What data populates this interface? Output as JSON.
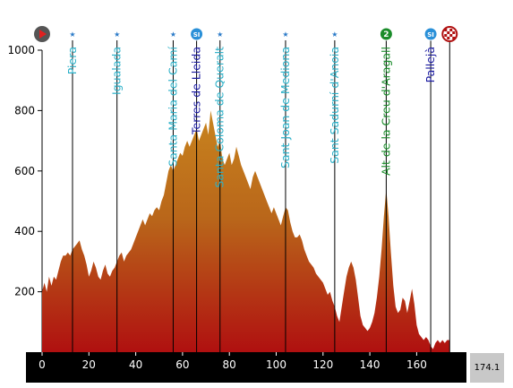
{
  "chart_data": {
    "type": "area",
    "title": "",
    "xlabel": "",
    "ylabel": "",
    "xlim": [
      0,
      180
    ],
    "ylim": [
      0,
      1000
    ],
    "x_ticks": [
      0,
      20,
      40,
      60,
      80,
      100,
      120,
      140,
      160
    ],
    "y_ticks": [
      200,
      400,
      600,
      800,
      1000
    ],
    "total_distance": "174.1",
    "profile": [
      [
        0,
        200
      ],
      [
        1,
        230
      ],
      [
        2,
        200
      ],
      [
        3,
        250
      ],
      [
        4,
        220
      ],
      [
        5,
        250
      ],
      [
        6,
        240
      ],
      [
        7,
        270
      ],
      [
        8,
        300
      ],
      [
        9,
        320
      ],
      [
        10,
        320
      ],
      [
        11,
        330
      ],
      [
        12,
        320
      ],
      [
        13,
        340
      ],
      [
        14,
        350
      ],
      [
        15,
        360
      ],
      [
        16,
        370
      ],
      [
        17,
        340
      ],
      [
        18,
        320
      ],
      [
        19,
        290
      ],
      [
        20,
        250
      ],
      [
        21,
        270
      ],
      [
        22,
        300
      ],
      [
        23,
        280
      ],
      [
        24,
        250
      ],
      [
        25,
        240
      ],
      [
        26,
        270
      ],
      [
        27,
        290
      ],
      [
        28,
        260
      ],
      [
        29,
        250
      ],
      [
        30,
        270
      ],
      [
        31,
        280
      ],
      [
        32,
        300
      ],
      [
        33,
        320
      ],
      [
        34,
        330
      ],
      [
        35,
        300
      ],
      [
        36,
        320
      ],
      [
        37,
        330
      ],
      [
        38,
        340
      ],
      [
        39,
        360
      ],
      [
        40,
        380
      ],
      [
        41,
        400
      ],
      [
        42,
        420
      ],
      [
        43,
        440
      ],
      [
        44,
        420
      ],
      [
        45,
        440
      ],
      [
        46,
        460
      ],
      [
        47,
        450
      ],
      [
        48,
        470
      ],
      [
        49,
        480
      ],
      [
        50,
        470
      ],
      [
        51,
        500
      ],
      [
        52,
        520
      ],
      [
        53,
        560
      ],
      [
        54,
        600
      ],
      [
        55,
        620
      ],
      [
        56,
        600
      ],
      [
        57,
        620
      ],
      [
        58,
        640
      ],
      [
        59,
        660
      ],
      [
        60,
        650
      ],
      [
        61,
        680
      ],
      [
        62,
        700
      ],
      [
        63,
        680
      ],
      [
        64,
        700
      ],
      [
        65,
        720
      ],
      [
        66,
        740
      ],
      [
        67,
        700
      ],
      [
        68,
        720
      ],
      [
        69,
        740
      ],
      [
        70,
        760
      ],
      [
        71,
        720
      ],
      [
        72,
        800
      ],
      [
        73,
        760
      ],
      [
        74,
        720
      ],
      [
        75,
        680
      ],
      [
        76,
        700
      ],
      [
        77,
        640
      ],
      [
        78,
        620
      ],
      [
        79,
        640
      ],
      [
        80,
        660
      ],
      [
        81,
        620
      ],
      [
        82,
        640
      ],
      [
        83,
        680
      ],
      [
        84,
        650
      ],
      [
        85,
        620
      ],
      [
        86,
        600
      ],
      [
        87,
        580
      ],
      [
        88,
        560
      ],
      [
        89,
        540
      ],
      [
        90,
        580
      ],
      [
        91,
        600
      ],
      [
        92,
        580
      ],
      [
        93,
        560
      ],
      [
        94,
        540
      ],
      [
        95,
        520
      ],
      [
        96,
        500
      ],
      [
        97,
        480
      ],
      [
        98,
        460
      ],
      [
        99,
        480
      ],
      [
        100,
        460
      ],
      [
        101,
        440
      ],
      [
        102,
        420
      ],
      [
        103,
        450
      ],
      [
        104,
        480
      ],
      [
        105,
        470
      ],
      [
        106,
        430
      ],
      [
        107,
        400
      ],
      [
        108,
        380
      ],
      [
        109,
        380
      ],
      [
        110,
        390
      ],
      [
        111,
        370
      ],
      [
        112,
        340
      ],
      [
        113,
        320
      ],
      [
        114,
        300
      ],
      [
        115,
        290
      ],
      [
        116,
        280
      ],
      [
        117,
        260
      ],
      [
        118,
        250
      ],
      [
        119,
        240
      ],
      [
        120,
        230
      ],
      [
        121,
        210
      ],
      [
        122,
        190
      ],
      [
        123,
        200
      ],
      [
        124,
        170
      ],
      [
        125,
        150
      ],
      [
        126,
        120
      ],
      [
        127,
        100
      ],
      [
        128,
        150
      ],
      [
        129,
        200
      ],
      [
        130,
        250
      ],
      [
        131,
        280
      ],
      [
        132,
        300
      ],
      [
        133,
        280
      ],
      [
        134,
        240
      ],
      [
        135,
        180
      ],
      [
        136,
        120
      ],
      [
        137,
        90
      ],
      [
        138,
        80
      ],
      [
        139,
        70
      ],
      [
        140,
        80
      ],
      [
        141,
        100
      ],
      [
        142,
        130
      ],
      [
        143,
        180
      ],
      [
        144,
        250
      ],
      [
        145,
        340
      ],
      [
        146,
        450
      ],
      [
        147,
        540
      ],
      [
        148,
        450
      ],
      [
        149,
        330
      ],
      [
        150,
        220
      ],
      [
        151,
        150
      ],
      [
        152,
        130
      ],
      [
        153,
        140
      ],
      [
        154,
        180
      ],
      [
        155,
        170
      ],
      [
        156,
        130
      ],
      [
        157,
        170
      ],
      [
        158,
        210
      ],
      [
        159,
        160
      ],
      [
        160,
        90
      ],
      [
        161,
        60
      ],
      [
        162,
        50
      ],
      [
        163,
        40
      ],
      [
        164,
        50
      ],
      [
        165,
        40
      ],
      [
        166,
        20
      ],
      [
        167,
        10
      ],
      [
        168,
        30
      ],
      [
        169,
        40
      ],
      [
        170,
        30
      ],
      [
        171,
        40
      ],
      [
        172,
        30
      ],
      [
        173,
        40
      ],
      [
        174.1,
        40
      ]
    ],
    "waypoints": [
      {
        "name": "Piera",
        "km": 13,
        "elevation": 320,
        "icon": "sprint-icon",
        "color": "#2ab0c8"
      },
      {
        "name": "Igualada",
        "km": 32,
        "elevation": 300,
        "icon": "sprint-icon",
        "color": "#2ab0c8"
      },
      {
        "name": "Santa Maria del Camí",
        "km": 56,
        "elevation": 600,
        "icon": "sprint-icon",
        "color": "#2ab0c8"
      },
      {
        "name": "Terres de Lleida",
        "km": 66,
        "elevation": 690,
        "icon": "intermediate-sprint-icon",
        "color": "#1a1aa0"
      },
      {
        "name": "Santa Coloma de Queralt",
        "km": 76,
        "elevation": 650,
        "icon": "sprint-icon",
        "color": "#2ab0c8"
      },
      {
        "name": "Sant Joan de Mediona",
        "km": 104,
        "elevation": 480,
        "icon": "sprint-icon",
        "color": "#2ab0c8"
      },
      {
        "name": "Sant Sadurní d'Anoia",
        "km": 125,
        "elevation": 180,
        "icon": "sprint-icon",
        "color": "#2ab0c8"
      },
      {
        "name": "Alt de la Creu d'Aragall",
        "km": 147,
        "elevation": 540,
        "icon": "kom-cat2-icon",
        "color": "#1a8c2a"
      },
      {
        "name": "Pallejà",
        "km": 166,
        "elevation": 20,
        "icon": "intermediate-sprint-icon",
        "color": "#1a1aa0"
      }
    ],
    "start_icon": "start-flag-icon",
    "finish_icon": "finish-flag-icon",
    "finish_km": 174.1,
    "colors": {
      "fill_top": "#c8841e",
      "fill_bottom": "#b01010",
      "x_axis_bar": "#000000",
      "total_box": "#c8c8c8"
    },
    "icon_glyphs": {
      "sprint": "★",
      "intermediate": "SI",
      "kom_cat2": "2"
    }
  }
}
